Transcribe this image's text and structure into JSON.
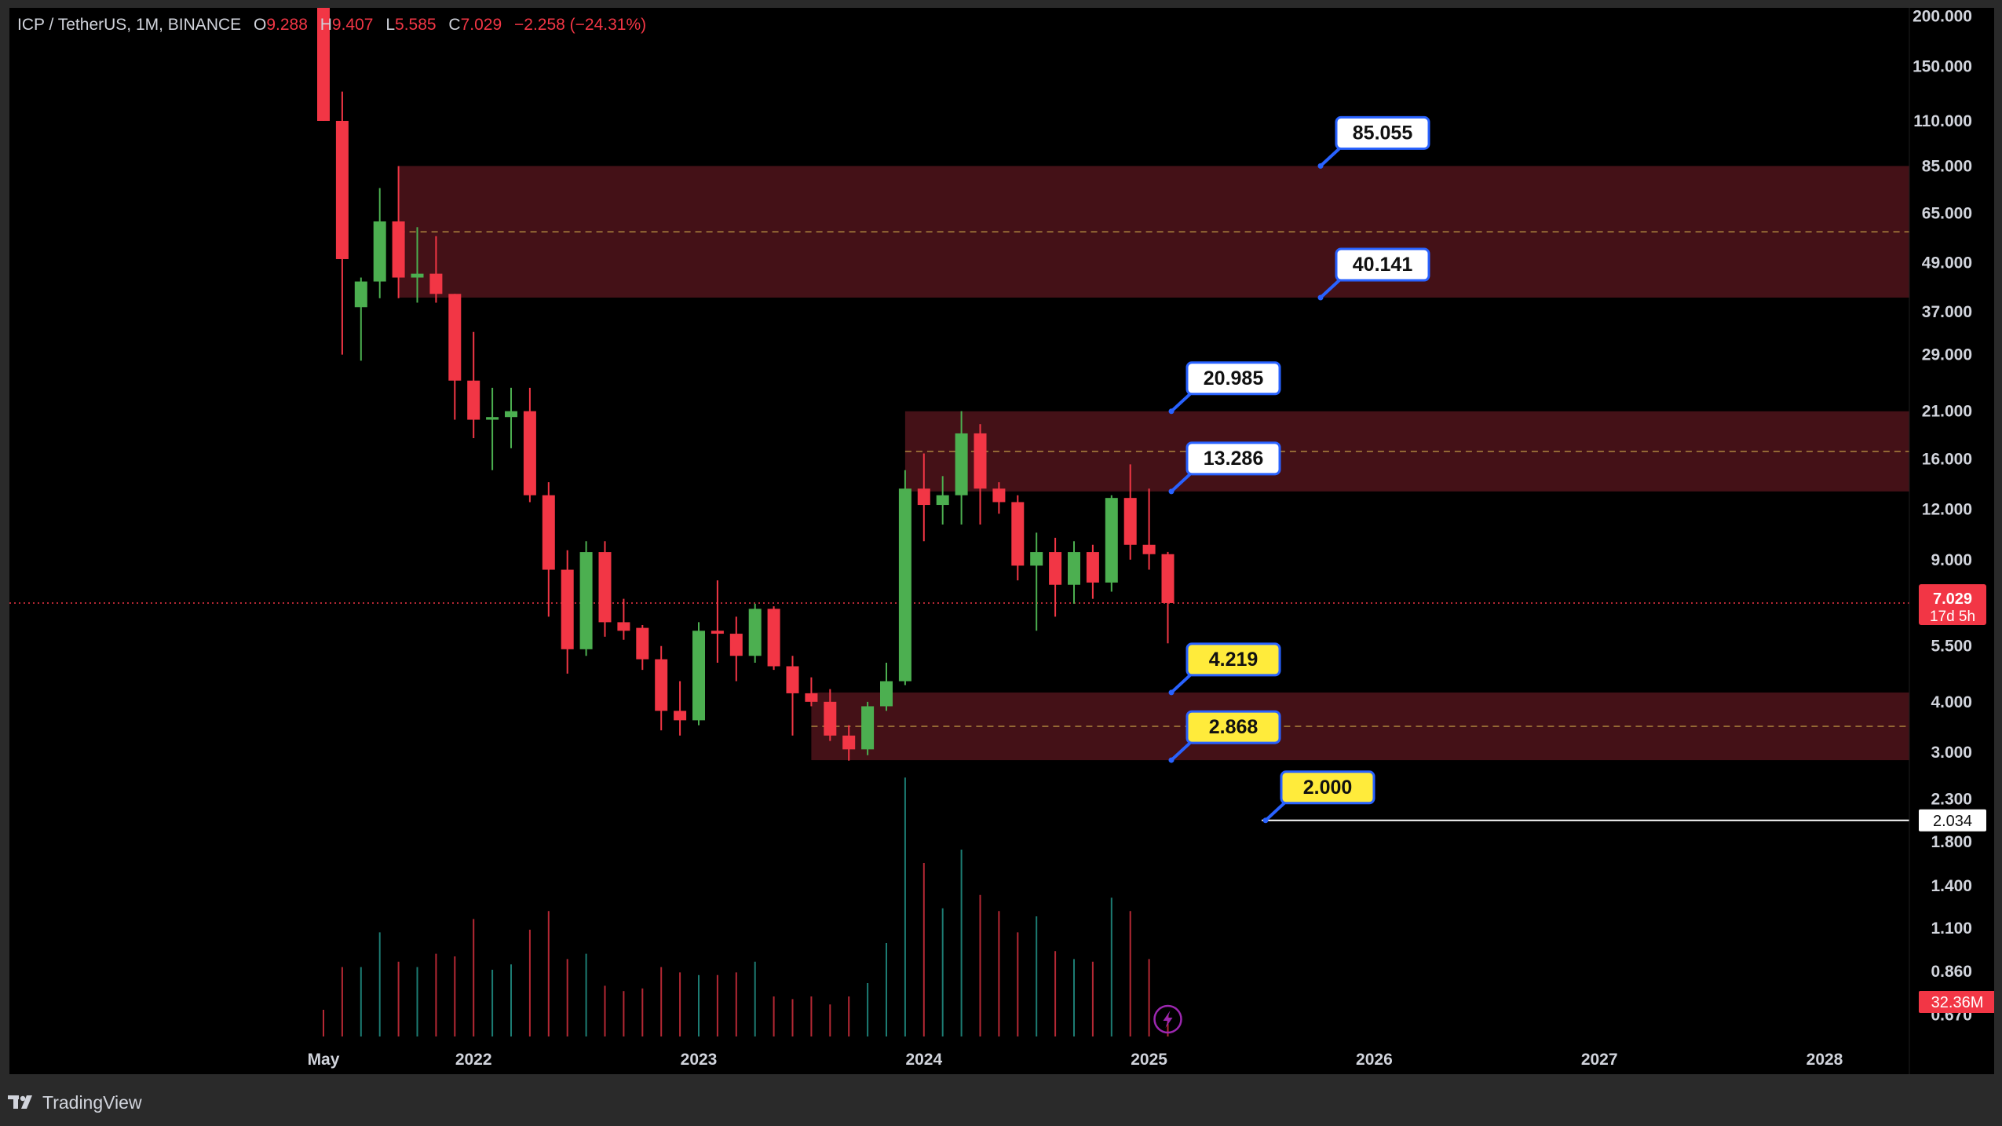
{
  "header": {
    "symbol": "ICP / TetherUS, 1M, BINANCE",
    "o_label": "O",
    "o_value": "9.288",
    "h_label": "H",
    "h_value": "9.407",
    "l_label": "L",
    "l_value": "5.585",
    "c_label": "C",
    "c_value": "7.029",
    "change": "−2.258 (−24.31%)"
  },
  "brand": {
    "name": "TradingView",
    "icon": "tradingview-logo-icon"
  },
  "colors": {
    "up": "#26a69a",
    "up_bright": "#4caf50",
    "down": "#f23645",
    "zone": "#4a1219",
    "zone_mid": "#c9a24a",
    "label_blue_bg": "#ffffff",
    "label_blue_border": "#2962ff",
    "label_yellow_bg": "#ffeb3b"
  },
  "chart_data": {
    "type": "candlestick",
    "symbol": "ICP / TetherUS",
    "interval": "1M",
    "exchange": "BINANCE",
    "y_scale": "log",
    "ylim": [
      0.62,
      205
    ],
    "x_range": [
      "2021-03",
      "2028-04"
    ],
    "grid": false,
    "y_ticks": [
      "200.000",
      "150.000",
      "110.000",
      "85.000",
      "65.000",
      "49.000",
      "37.000",
      "29.000",
      "21.000",
      "16.000",
      "12.000",
      "9.000",
      "5.500",
      "4.000",
      "3.000",
      "2.300",
      "1.800",
      "1.400",
      "1.100",
      "0.860",
      "0.670"
    ],
    "x_ticks": [
      {
        "label": "May",
        "date": "2021-05"
      },
      {
        "label": "2022",
        "date": "2022-01"
      },
      {
        "label": "2023",
        "date": "2023-01"
      },
      {
        "label": "2024",
        "date": "2024-01"
      },
      {
        "label": "2025",
        "date": "2025-01"
      },
      {
        "label": "2026",
        "date": "2026-01"
      },
      {
        "label": "2027",
        "date": "2027-01"
      },
      {
        "label": "2028",
        "date": "2028-01"
      }
    ],
    "candles": [
      {
        "date": "2021-05",
        "o": 450,
        "h": 500,
        "l": 110,
        "c": 110
      },
      {
        "date": "2021-06",
        "o": 110,
        "h": 130,
        "l": 29,
        "c": 50
      },
      {
        "date": "2021-07",
        "o": 38,
        "h": 45,
        "l": 28,
        "c": 44
      },
      {
        "date": "2021-08",
        "o": 44,
        "h": 75,
        "l": 40,
        "c": 62
      },
      {
        "date": "2021-09",
        "o": 62,
        "h": 85,
        "l": 40,
        "c": 45
      },
      {
        "date": "2021-10",
        "o": 45,
        "h": 60,
        "l": 39,
        "c": 46
      },
      {
        "date": "2021-11",
        "o": 46,
        "h": 57,
        "l": 39,
        "c": 41
      },
      {
        "date": "2021-12",
        "o": 41,
        "h": 41,
        "l": 20,
        "c": 25
      },
      {
        "date": "2022-01",
        "o": 25,
        "h": 33,
        "l": 18,
        "c": 20
      },
      {
        "date": "2022-02",
        "o": 20,
        "h": 24,
        "l": 15,
        "c": 20.3
      },
      {
        "date": "2022-03",
        "o": 20.3,
        "h": 24,
        "l": 17,
        "c": 21
      },
      {
        "date": "2022-04",
        "o": 21,
        "h": 24,
        "l": 12.5,
        "c": 13
      },
      {
        "date": "2022-05",
        "o": 13,
        "h": 14,
        "l": 6.5,
        "c": 8.5
      },
      {
        "date": "2022-06",
        "o": 8.5,
        "h": 9.5,
        "l": 4.7,
        "c": 5.4
      },
      {
        "date": "2022-07",
        "o": 5.4,
        "h": 10,
        "l": 5.2,
        "c": 9.4
      },
      {
        "date": "2022-08",
        "o": 9.4,
        "h": 10,
        "l": 5.8,
        "c": 6.3
      },
      {
        "date": "2022-09",
        "o": 6.3,
        "h": 7.2,
        "l": 5.7,
        "c": 6.0
      },
      {
        "date": "2022-10",
        "o": 6.1,
        "h": 6.2,
        "l": 4.8,
        "c": 5.1
      },
      {
        "date": "2022-11",
        "o": 5.1,
        "h": 5.5,
        "l": 3.4,
        "c": 3.8
      },
      {
        "date": "2022-12",
        "o": 3.8,
        "h": 4.5,
        "l": 3.3,
        "c": 3.6
      },
      {
        "date": "2023-01",
        "o": 3.6,
        "h": 6.3,
        "l": 3.5,
        "c": 6.0
      },
      {
        "date": "2023-02",
        "o": 6.0,
        "h": 8.0,
        "l": 5.0,
        "c": 5.9
      },
      {
        "date": "2023-03",
        "o": 5.9,
        "h": 6.5,
        "l": 4.5,
        "c": 5.2
      },
      {
        "date": "2023-04",
        "o": 5.2,
        "h": 7.0,
        "l": 5.0,
        "c": 6.8
      },
      {
        "date": "2023-05",
        "o": 6.8,
        "h": 6.9,
        "l": 4.8,
        "c": 4.9
      },
      {
        "date": "2023-06",
        "o": 4.9,
        "h": 5.2,
        "l": 3.3,
        "c": 4.2
      },
      {
        "date": "2023-07",
        "o": 4.2,
        "h": 4.6,
        "l": 3.9,
        "c": 4.0
      },
      {
        "date": "2023-08",
        "o": 4.0,
        "h": 4.3,
        "l": 3.2,
        "c": 3.3
      },
      {
        "date": "2023-09",
        "o": 3.3,
        "h": 3.5,
        "l": 2.86,
        "c": 3.05
      },
      {
        "date": "2023-10",
        "o": 3.05,
        "h": 4.0,
        "l": 2.95,
        "c": 3.9
      },
      {
        "date": "2023-11",
        "o": 3.9,
        "h": 5.0,
        "l": 3.8,
        "c": 4.5
      },
      {
        "date": "2023-12",
        "o": 4.5,
        "h": 15.0,
        "l": 4.4,
        "c": 13.5
      },
      {
        "date": "2024-01",
        "o": 13.5,
        "h": 16.5,
        "l": 10.0,
        "c": 12.3
      },
      {
        "date": "2024-02",
        "o": 12.3,
        "h": 14.5,
        "l": 11.0,
        "c": 13.0
      },
      {
        "date": "2024-03",
        "o": 13.0,
        "h": 21.0,
        "l": 11.0,
        "c": 18.5
      },
      {
        "date": "2024-04",
        "o": 18.5,
        "h": 19.5,
        "l": 11.0,
        "c": 13.5
      },
      {
        "date": "2024-05",
        "o": 13.5,
        "h": 14.0,
        "l": 11.7,
        "c": 12.5
      },
      {
        "date": "2024-06",
        "o": 12.5,
        "h": 13.0,
        "l": 8.0,
        "c": 8.7
      },
      {
        "date": "2024-07",
        "o": 8.7,
        "h": 10.5,
        "l": 6.0,
        "c": 9.4
      },
      {
        "date": "2024-08",
        "o": 9.4,
        "h": 10.2,
        "l": 6.5,
        "c": 7.8
      },
      {
        "date": "2024-09",
        "o": 7.8,
        "h": 10.0,
        "l": 7.0,
        "c": 9.4
      },
      {
        "date": "2024-10",
        "o": 9.4,
        "h": 9.8,
        "l": 7.2,
        "c": 7.9
      },
      {
        "date": "2024-11",
        "o": 7.9,
        "h": 13.0,
        "l": 7.5,
        "c": 12.8
      },
      {
        "date": "2024-12",
        "o": 12.8,
        "h": 15.5,
        "l": 9.0,
        "c": 9.8
      },
      {
        "date": "2025-01",
        "o": 9.8,
        "h": 13.5,
        "l": 8.5,
        "c": 9.288
      },
      {
        "date": "2025-02",
        "o": 9.288,
        "h": 9.407,
        "l": 5.585,
        "c": 7.029
      }
    ],
    "volume": [
      0.1,
      0.26,
      0.26,
      0.39,
      0.28,
      0.26,
      0.31,
      0.3,
      0.44,
      0.25,
      0.27,
      0.4,
      0.47,
      0.29,
      0.31,
      0.19,
      0.17,
      0.18,
      0.26,
      0.24,
      0.23,
      0.23,
      0.24,
      0.28,
      0.15,
      0.14,
      0.15,
      0.12,
      0.15,
      0.2,
      0.35,
      0.97,
      0.65,
      0.48,
      0.7,
      0.53,
      0.47,
      0.39,
      0.45,
      0.32,
      0.29,
      0.28,
      0.52,
      0.47,
      0.29,
      0.08
    ],
    "zones": [
      {
        "top": 85.055,
        "bottom": 40.141,
        "from": "2021-09"
      },
      {
        "top": 20.985,
        "bottom": 13.286,
        "from": "2023-12"
      },
      {
        "top": 4.219,
        "bottom": 2.868,
        "from": "2023-07"
      }
    ],
    "level_labels": [
      {
        "value": "85.055",
        "style": "blue"
      },
      {
        "value": "40.141",
        "style": "blue"
      },
      {
        "value": "20.985",
        "style": "blue"
      },
      {
        "value": "13.286",
        "style": "blue"
      },
      {
        "value": "4.219",
        "style": "yellow"
      },
      {
        "value": "2.868",
        "style": "yellow"
      },
      {
        "value": "2.000",
        "style": "yellow"
      }
    ],
    "horizontal_line": {
      "price": 2.034,
      "label": "2.034",
      "from": "2025-07"
    },
    "last_price": {
      "value": "7.029",
      "countdown": "17d 5h"
    },
    "volume_last": "32.36M"
  }
}
